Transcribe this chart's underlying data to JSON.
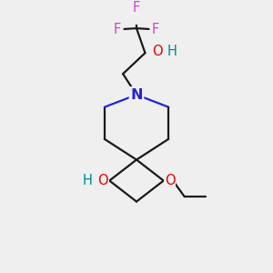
{
  "bg_color": "#efefef",
  "bond_color": "#1a1a1a",
  "N_color": "#2222dd",
  "O_color": "#dd0000",
  "F_color": "#cc44cc",
  "OH_color": "#008888",
  "H_color": "#008888",
  "font_size": 10.5,
  "bond_width": 1.6,
  "xlim": [
    0,
    10
  ],
  "ylim": [
    0,
    10
  ],
  "spiro_x": 5.0,
  "spiro_y": 4.5
}
